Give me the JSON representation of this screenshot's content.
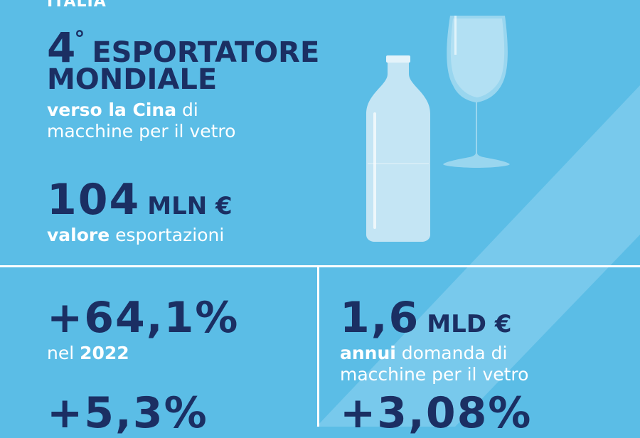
{
  "header": {
    "country": "ITALIA"
  },
  "rank": {
    "number": "4",
    "degree": "°",
    "title_line1": "ESPORTATORE",
    "title_line2": "MONDIALE"
  },
  "rank_desc": {
    "bold": "verso la Cina",
    "rest": " di",
    "line2": "macchine per il vetro"
  },
  "export_value": {
    "number": "104",
    "unit": "MLN €",
    "bold": "valore",
    "rest": " esportazioni"
  },
  "growth": {
    "value": "+64,1%",
    "prefix": "nel ",
    "year": "2022",
    "value2": "+5,3%"
  },
  "demand": {
    "number": "1,6",
    "unit": "MLD €",
    "bold": "annui",
    "rest": " domanda di",
    "line2": "macchine per il vetro",
    "value2": "+3,08%"
  },
  "colors": {
    "background": "#5bbde6",
    "navy": "#1b2f63",
    "white": "#ffffff"
  }
}
